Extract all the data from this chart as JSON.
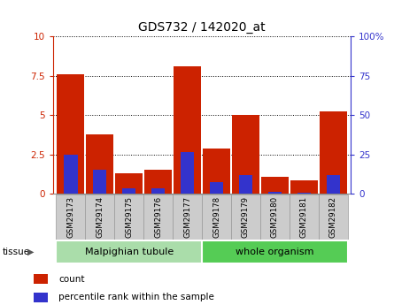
{
  "title": "GDS732 / 142020_at",
  "samples": [
    "GSM29173",
    "GSM29174",
    "GSM29175",
    "GSM29176",
    "GSM29177",
    "GSM29178",
    "GSM29179",
    "GSM29180",
    "GSM29181",
    "GSM29182"
  ],
  "count_values": [
    7.6,
    3.8,
    1.3,
    1.55,
    8.1,
    2.9,
    5.0,
    1.1,
    0.85,
    5.25
  ],
  "percentile_values": [
    2.5,
    1.55,
    0.35,
    0.35,
    2.65,
    0.75,
    1.2,
    0.12,
    0.06,
    1.2
  ],
  "count_color": "#cc2200",
  "percentile_color": "#3333cc",
  "ylim_left": [
    0,
    10
  ],
  "ylim_right": [
    0,
    100
  ],
  "yticks_left": [
    0,
    2.5,
    5.0,
    7.5,
    10
  ],
  "yticks_right": [
    0,
    25,
    50,
    75,
    100
  ],
  "ytick_labels_left": [
    "0",
    "2.5",
    "5",
    "7.5",
    "10"
  ],
  "ytick_labels_right": [
    "0",
    "25",
    "50",
    "75",
    "100%"
  ],
  "tissue_groups": [
    {
      "label": "Malpighian tubule",
      "start": 0,
      "end": 5,
      "color": "#aaddaa"
    },
    {
      "label": "whole organism",
      "start": 5,
      "end": 10,
      "color": "#55cc55"
    }
  ],
  "tissue_label": "tissue",
  "legend_items": [
    {
      "label": "count",
      "color": "#cc2200"
    },
    {
      "label": "percentile rank within the sample",
      "color": "#3333cc"
    }
  ],
  "tick_label_bg": "#cccccc",
  "grid_color": "#000000",
  "bar_width": 0.55
}
